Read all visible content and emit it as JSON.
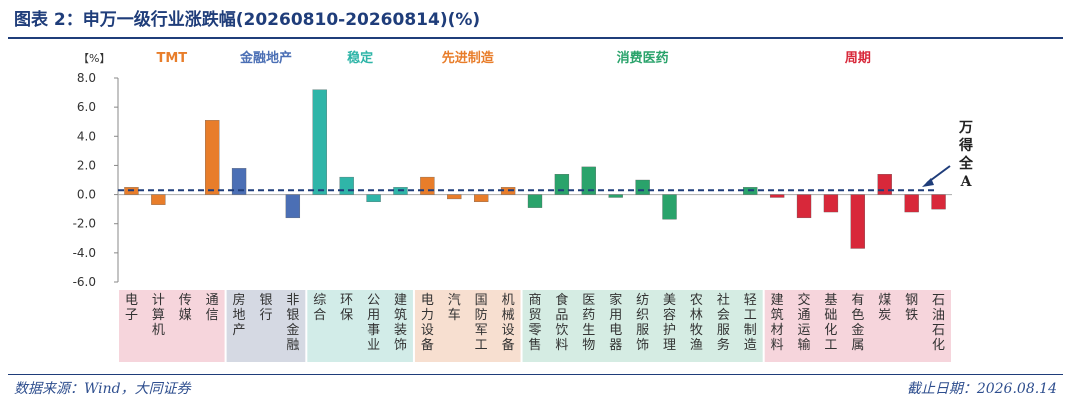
{
  "title": "图表 2：申万一级行业涨跌幅(20260810-20260814)(%)",
  "source": "数据来源：Wind，大同证券",
  "cutoff": "截止日期：2026.08.14",
  "colors": {
    "title": "#1f3d7a",
    "benchmark": "#1f3d7a"
  },
  "chart_data": {
    "type": "bar",
    "unit_label": "【%】",
    "ylim": [
      -6.0,
      8.0
    ],
    "yticks": [
      8.0,
      6.0,
      4.0,
      2.0,
      0.0,
      -2.0,
      -4.0,
      -6.0
    ],
    "ytick_labels": [
      "8.0",
      "6.0",
      "4.0",
      "2.0",
      "0.0",
      "-2.0",
      "-4.0",
      "-6.0"
    ],
    "benchmark": {
      "label": "万得全A",
      "value": 0.3
    },
    "groups": [
      {
        "name": "TMT",
        "color": "#e87d2a",
        "bg": "#f6d5dc",
        "categories": [
          "电子",
          "计算机",
          "传媒",
          "通信"
        ],
        "values": [
          0.5,
          -0.7,
          0.0,
          5.1
        ]
      },
      {
        "name": "金融地产",
        "color": "#4b6fb5",
        "bg": "#d5d9e3",
        "categories": [
          "房地产",
          "银行",
          "非银金融"
        ],
        "values": [
          1.8,
          0.0,
          -1.6
        ]
      },
      {
        "name": "稳定",
        "color": "#2fb5a8",
        "bg": "#d2ece8",
        "categories": [
          "综合",
          "环保",
          "公用事业",
          "建筑装饰"
        ],
        "values": [
          7.2,
          1.2,
          -0.5,
          0.5
        ]
      },
      {
        "name": "先进制造",
        "color": "#e87d2a",
        "bg": "#f7dfd0",
        "categories": [
          "电力设备",
          "汽车",
          "国防军工",
          "机械设备"
        ],
        "values": [
          1.2,
          -0.3,
          -0.5,
          0.5
        ]
      },
      {
        "name": "消费医药",
        "color": "#2aa36b",
        "bg": "#d5ece3",
        "categories": [
          "商贸零售",
          "食品饮料",
          "医药生物",
          "家用电器",
          "纺织服饰",
          "美容护理",
          "农林牧渔",
          "社会服务",
          "轻工制造"
        ],
        "values": [
          -0.9,
          1.4,
          1.9,
          -0.2,
          1.0,
          -1.7,
          0.0,
          0.0,
          0.5
        ]
      },
      {
        "name": "周期",
        "color": "#d8283a",
        "bg": "#f6d5dc",
        "categories": [
          "建筑材料",
          "交通运输",
          "基础化工",
          "有色金属",
          "煤炭",
          "钢铁",
          "石油石化"
        ],
        "values": [
          -0.2,
          -1.6,
          -1.2,
          -3.7,
          1.4,
          -1.2,
          -1.0
        ]
      }
    ]
  }
}
